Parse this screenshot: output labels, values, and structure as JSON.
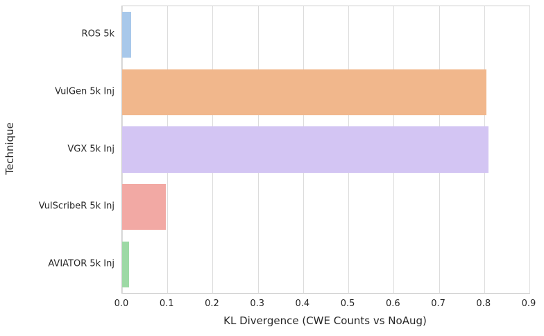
{
  "chart_data": {
    "type": "bar",
    "orientation": "horizontal",
    "title": "",
    "xlabel": "KL Divergence (CWE Counts vs NoAug)",
    "ylabel": "Technique",
    "categories": [
      "ROS 5k",
      "VulGen 5k Inj",
      "VGX 5k Inj",
      "VulScribeR 5k Inj",
      "AVIATOR 5k Inj"
    ],
    "values": [
      0.02,
      0.805,
      0.81,
      0.097,
      0.016
    ],
    "bar_colors": [
      "#a8c8ea",
      "#f1b78c",
      "#d3c5f3",
      "#f2a9a4",
      "#9dd9a5"
    ],
    "xlim": [
      0.0,
      0.9
    ],
    "xticks": [
      0.0,
      0.1,
      0.2,
      0.3,
      0.4,
      0.5,
      0.6,
      0.7,
      0.8,
      0.9
    ],
    "xtick_labels": [
      "0.0",
      "0.1",
      "0.2",
      "0.3",
      "0.4",
      "0.5",
      "0.6",
      "0.7",
      "0.8",
      "0.9"
    ],
    "grid": "vertical",
    "legend": "none",
    "grid_color": "#dcdcdc",
    "spine_color": "#cccccc",
    "text_color": "#262626",
    "background_color": "#ffffff"
  }
}
